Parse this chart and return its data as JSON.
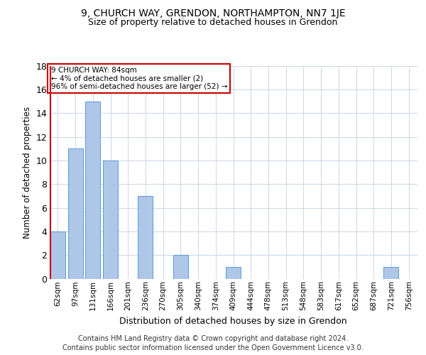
{
  "title1": "9, CHURCH WAY, GRENDON, NORTHAMPTON, NN7 1JE",
  "title2": "Size of property relative to detached houses in Grendon",
  "xlabel": "Distribution of detached houses by size in Grendon",
  "ylabel": "Number of detached properties",
  "footnote1": "Contains HM Land Registry data © Crown copyright and database right 2024.",
  "footnote2": "Contains public sector information licensed under the Open Government Licence v3.0.",
  "annotation_line1": "9 CHURCH WAY: 84sqm",
  "annotation_line2": "← 4% of detached houses are smaller (2)",
  "annotation_line3": "96% of semi-detached houses are larger (52) →",
  "bar_labels": [
    "62sqm",
    "97sqm",
    "131sqm",
    "166sqm",
    "201sqm",
    "236sqm",
    "270sqm",
    "305sqm",
    "340sqm",
    "374sqm",
    "409sqm",
    "444sqm",
    "478sqm",
    "513sqm",
    "548sqm",
    "583sqm",
    "617sqm",
    "652sqm",
    "687sqm",
    "721sqm",
    "756sqm"
  ],
  "bar_values": [
    4,
    11,
    15,
    10,
    0,
    7,
    0,
    2,
    0,
    0,
    1,
    0,
    0,
    0,
    0,
    0,
    0,
    0,
    0,
    1,
    0
  ],
  "bar_color": "#aec6e8",
  "bar_edge_color": "#5b9bd5",
  "marker_color": "#cc0000",
  "annotation_border_color": "#cc0000",
  "bg_color": "#ffffff",
  "grid_color": "#ccd6e8",
  "ylim": [
    0,
    18
  ],
  "yticks": [
    0,
    2,
    4,
    6,
    8,
    10,
    12,
    14,
    16,
    18
  ]
}
